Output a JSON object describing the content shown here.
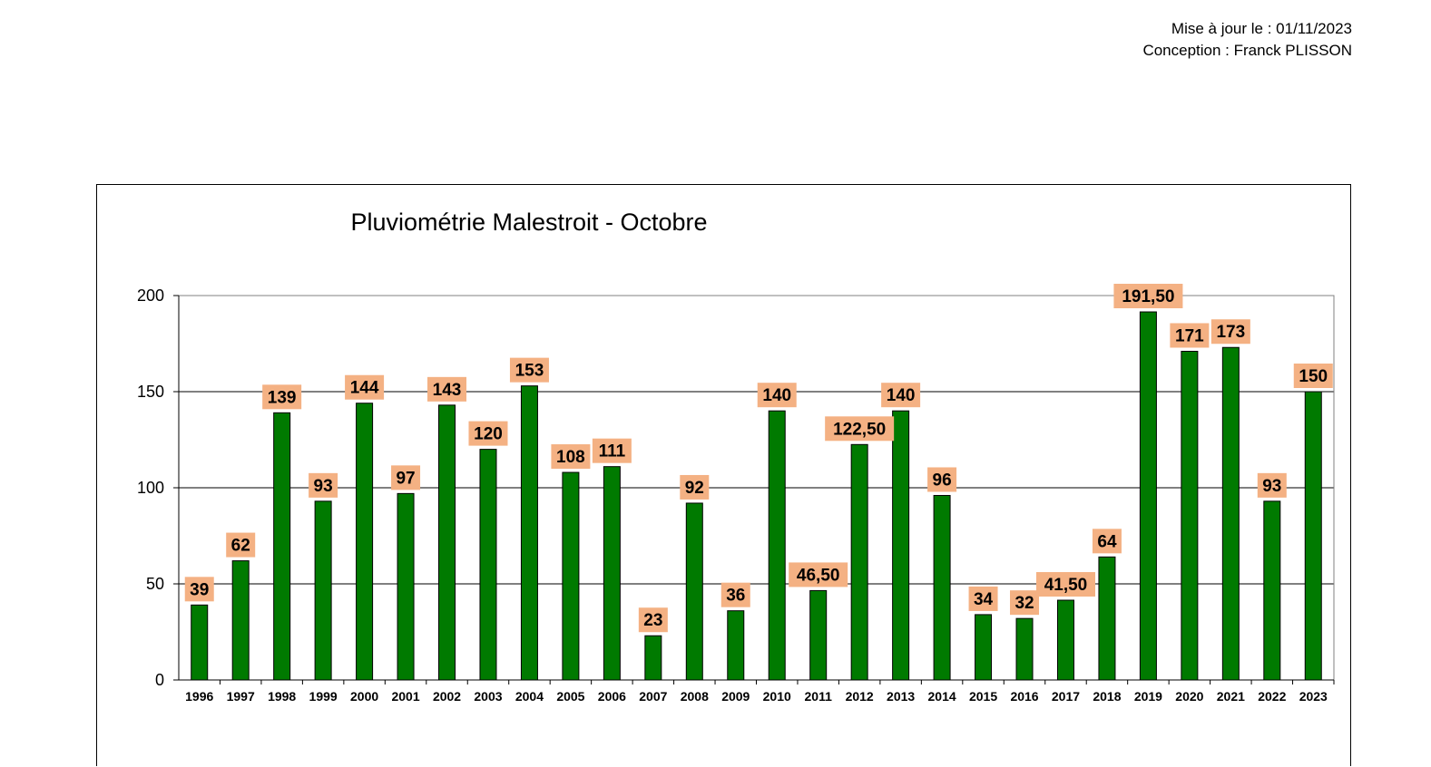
{
  "header": {
    "update_label": "Mise à jour le : 01/11/2023",
    "author_label": "Conception : Franck PLISSON"
  },
  "colors": {
    "bar": "#007A00",
    "label_bg": "#F4B183",
    "grid": "#000000"
  },
  "chart_data": {
    "type": "bar",
    "title": "Pluviométrie Malestroit - Octobre",
    "xlabel": "",
    "ylabel": "",
    "ylim": [
      0,
      200
    ],
    "yticks": [
      0,
      50,
      100,
      150,
      200
    ],
    "grid": true,
    "legend": "none",
    "categories": [
      "1996",
      "1997",
      "1998",
      "1999",
      "2000",
      "2001",
      "2002",
      "2003",
      "2004",
      "2005",
      "2006",
      "2007",
      "2008",
      "2009",
      "2010",
      "2011",
      "2012",
      "2013",
      "2014",
      "2015",
      "2016",
      "2017",
      "2018",
      "2019",
      "2020",
      "2021",
      "2022",
      "2023"
    ],
    "values": [
      39,
      62,
      139,
      93,
      144,
      97,
      143,
      120,
      153,
      108,
      111,
      23,
      92,
      36,
      140,
      46.5,
      122.5,
      140,
      96,
      34,
      32,
      41.5,
      64,
      191.5,
      171,
      173,
      93,
      150
    ],
    "value_labels": [
      "39",
      "62",
      "139",
      "93",
      "144",
      "97",
      "143",
      "120",
      "153",
      "108",
      "111",
      "23",
      "92",
      "36",
      "140",
      "46,50",
      "122,50",
      "140",
      "96",
      "34",
      "32",
      "41,50",
      "64",
      "191,50",
      "171",
      "173",
      "93",
      "150"
    ]
  }
}
